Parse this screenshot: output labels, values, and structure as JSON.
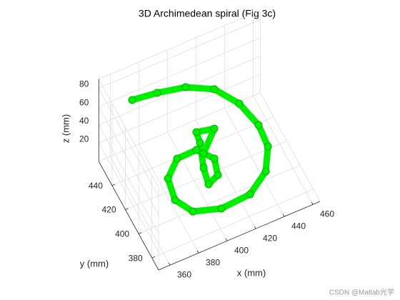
{
  "chart_data": {
    "type": "scatter3d",
    "title": "3D Archimedean spiral (Fig 3c)",
    "xlabel": "x (mm)",
    "ylabel": "y (mm)",
    "zlabel": "z (mm)",
    "color": "#00ee00",
    "x": [
      370.1,
      387.1,
      405.6,
      421.8,
      432.6,
      438,
      437.8,
      429.9,
      419,
      399.7,
      383.4,
      376.9,
      379,
      389.9,
      403,
      410.4,
      407.3,
      399.1,
      399.4,
      399.5,
      398.8,
      410.6,
      401
    ],
    "y": [
      448.7,
      447.6,
      444.5,
      436.2,
      421.9,
      404.4,
      389.9,
      376.2,
      376.3,
      378,
      386,
      398.8,
      414,
      423.5,
      422.6,
      411.7,
      399.7,
      396.1,
      404.2,
      409.8,
      413.7,
      412.2,
      407.7
    ],
    "z": [
      70,
      68,
      66,
      64,
      60,
      56,
      52,
      48,
      30,
      25,
      22,
      22,
      24,
      26,
      28,
      28,
      28,
      28,
      35,
      55,
      62,
      60,
      45
    ],
    "xlim": [
      352,
      465
    ],
    "ylim": [
      370,
      460
    ],
    "zlim": [
      0,
      90
    ],
    "xticks": [
      360,
      380,
      400,
      420,
      440,
      460
    ],
    "yticks": [
      380,
      400,
      420,
      440
    ],
    "zticks": [
      20,
      40,
      60,
      80
    ],
    "grid": true
  },
  "watermark": "CSDN @Matlab光学"
}
